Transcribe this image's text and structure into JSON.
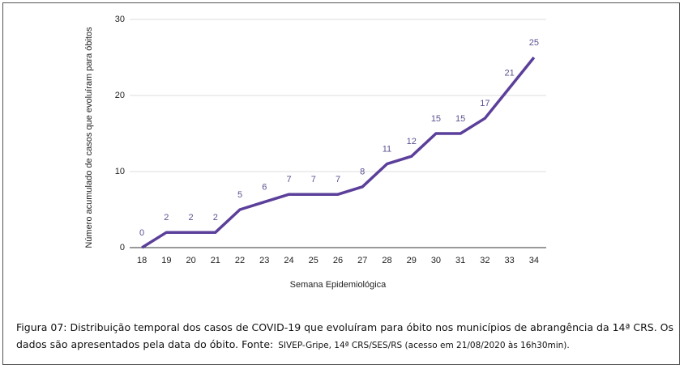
{
  "chart_data": {
    "type": "line",
    "x_label": "Semana Epidemiológica",
    "y_label": "Número acumulado de casos que evoluíram para óbitos",
    "categories": [
      "18",
      "19",
      "20",
      "21",
      "22",
      "23",
      "24",
      "25",
      "26",
      "27",
      "28",
      "29",
      "30",
      "31",
      "32",
      "33",
      "34"
    ],
    "values": [
      0,
      2,
      2,
      2,
      5,
      6,
      7,
      7,
      7,
      8,
      11,
      12,
      15,
      15,
      17,
      21,
      25
    ],
    "color": "#5b3f9a",
    "ylim": [
      0,
      30
    ],
    "yticks": [
      0,
      10,
      20,
      30
    ],
    "grid": true
  },
  "caption": {
    "text": "Figura 07: Distribuição temporal dos casos de COVID-19 que evoluíram para óbito nos municípios de abrangência da 14ª CRS. Os dados são apresentados pela data do óbito. Fonte:",
    "source": "SIVEP-Gripe, 14ª CRS/SES/RS (acesso em 21/08/2020 às 16h30min)."
  }
}
